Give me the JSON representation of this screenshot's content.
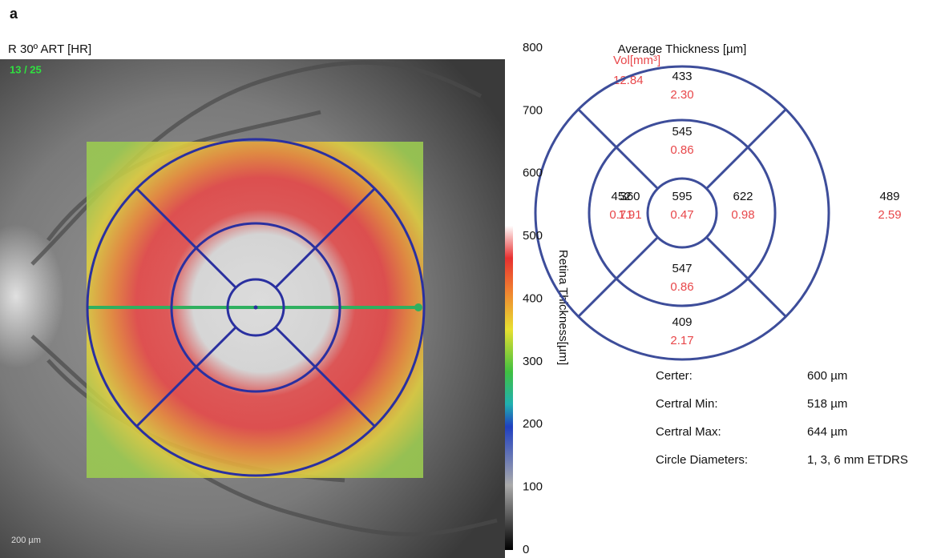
{
  "panel_label": "a",
  "fundus": {
    "title": "R 30º ART [HR]",
    "slice": "13 / 25",
    "scale_bar": "200 µm"
  },
  "colorbar": {
    "label": "Retina Thickness[µm]",
    "ticks": [
      800,
      700,
      600,
      500,
      400,
      300,
      200,
      100,
      0
    ]
  },
  "etdrs": {
    "title": "Average Thickness [µm]",
    "volume_label": "Vol[mm³]",
    "total_volume": "12.84",
    "sectors": [
      {
        "thickness": "433",
        "volume": "2.30"
      },
      {
        "thickness": "545",
        "volume": "0.86"
      },
      {
        "thickness": "360",
        "volume": "1.91"
      },
      {
        "thickness": "452",
        "volume": "0.71"
      },
      {
        "thickness": "595",
        "volume": "0.47"
      },
      {
        "thickness": "622",
        "volume": "0.98"
      },
      {
        "thickness": "489",
        "volume": "2.59"
      },
      {
        "thickness": "547",
        "volume": "0.86"
      },
      {
        "thickness": "409",
        "volume": "2.17"
      }
    ]
  },
  "stats": {
    "rows": [
      [
        "Certer:",
        "600 µm"
      ],
      [
        "Certral Min:",
        "518 µm"
      ],
      [
        "Certral Max:",
        "644 µm"
      ],
      [
        "Circle Diameters:",
        "1, 3, 6 mm ETDRS"
      ]
    ]
  }
}
